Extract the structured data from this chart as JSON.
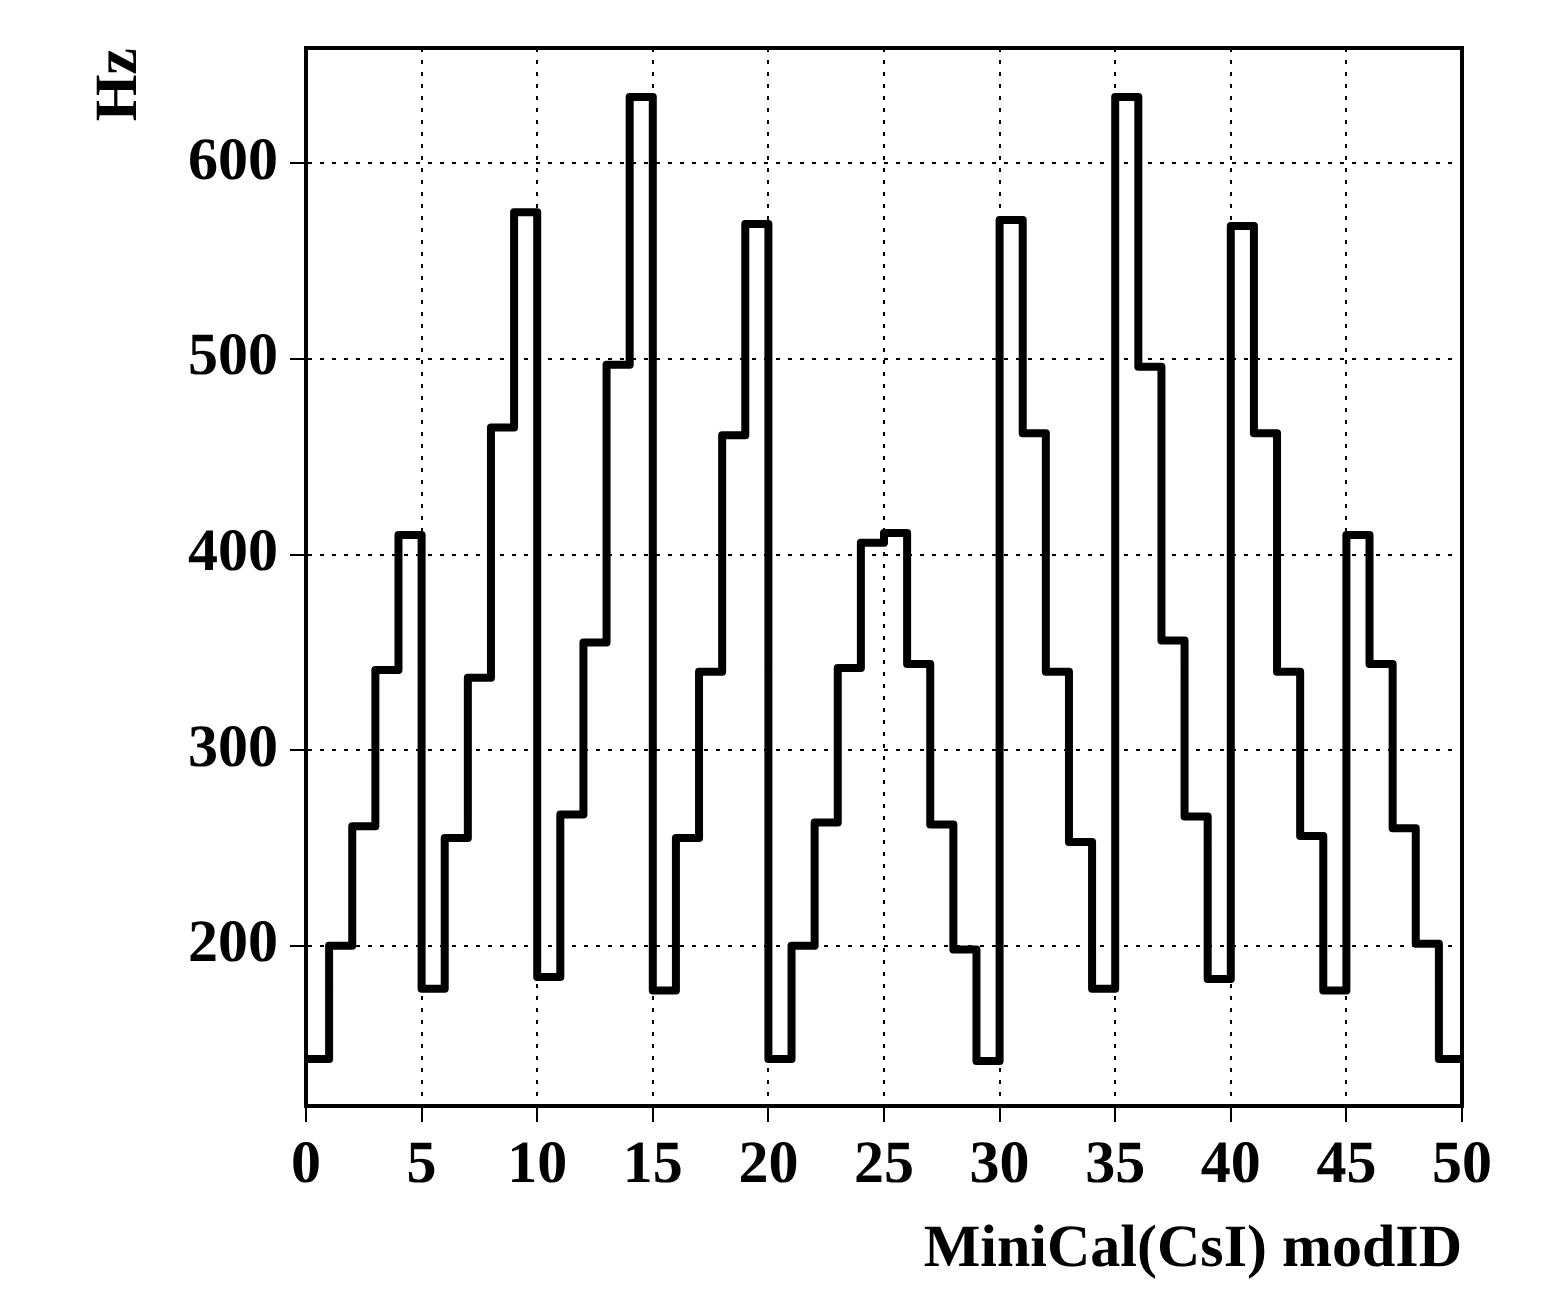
{
  "chart_data": {
    "type": "histogram",
    "xlabel": "MiniCal(CsI) modID",
    "ylabel": "Hz",
    "bins": [
      0,
      1,
      2,
      3,
      4,
      5,
      6,
      7,
      8,
      9,
      10,
      11,
      12,
      13,
      14,
      15,
      16,
      17,
      18,
      19,
      20,
      21,
      22,
      23,
      24,
      25,
      26,
      27,
      28,
      29,
      30,
      31,
      32,
      33,
      34,
      35,
      36,
      37,
      38,
      39,
      40,
      41,
      42,
      43,
      44,
      45,
      46,
      47,
      48,
      49,
      50
    ],
    "values": [
      142,
      200,
      261,
      341,
      410,
      178,
      255,
      337,
      465,
      575,
      184,
      267,
      355,
      497,
      634,
      177,
      255,
      340,
      461,
      569,
      142,
      200,
      263,
      342,
      406,
      411,
      344,
      262,
      198,
      141,
      571,
      462,
      340,
      253,
      178,
      634,
      496,
      356,
      266,
      183,
      568,
      462,
      340,
      256,
      177,
      410,
      344,
      260,
      201,
      142
    ],
    "color": "#000000",
    "xlim": [
      0,
      50
    ],
    "xticks": [
      0,
      5,
      10,
      15,
      20,
      25,
      30,
      35,
      40,
      45,
      50
    ],
    "ylim": [
      118,
      659
    ],
    "yticks": [
      200,
      300,
      400,
      500,
      600
    ],
    "grid": true
  }
}
